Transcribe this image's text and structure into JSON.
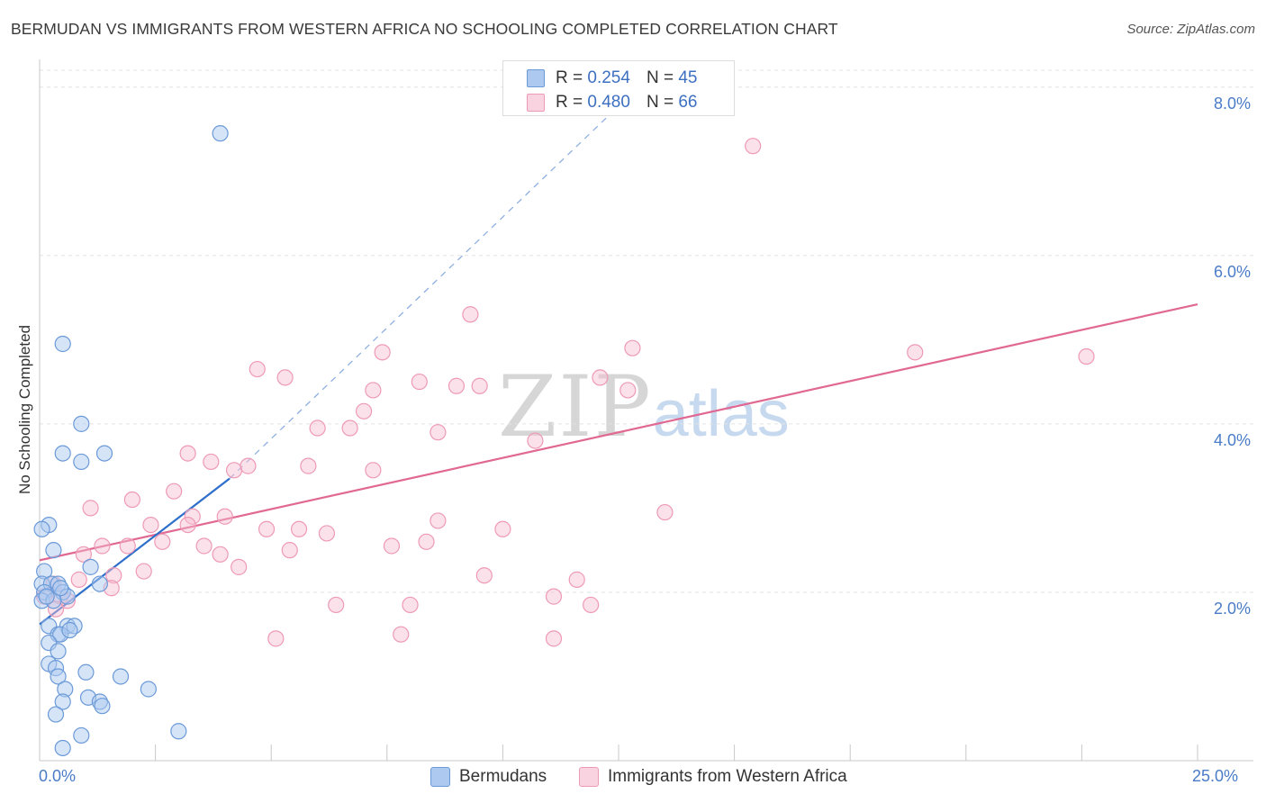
{
  "title": "BERMUDAN VS IMMIGRANTS FROM WESTERN AFRICA NO SCHOOLING COMPLETED CORRELATION CHART",
  "source": "Source: ZipAtlas.com",
  "watermark": {
    "zip": "ZIP",
    "atlas": "atlas"
  },
  "colors": {
    "bermudans_fill": "#adc9f0",
    "bermudans_stroke": "#6b9ad8",
    "bermudans_line": "#2f6fcc",
    "wafrica_fill": "#f6bcd0",
    "wafrica_stroke": "#ee9ab5",
    "wafrica_line": "#e06892",
    "tick_text": "#4a7cc7",
    "grid": "#e3e3e3"
  },
  "legend": {
    "rows": [
      {
        "r_label": "R = ",
        "r_value": "0.254",
        "n_label": "N = ",
        "n_value": "45"
      },
      {
        "r_label": "R = ",
        "r_value": "0.480",
        "n_label": "N = ",
        "n_value": "66"
      }
    ]
  },
  "bottom_legend": [
    "Bermudans",
    "Immigrants from Western Africa"
  ],
  "chart_data": {
    "type": "scatter",
    "title": "BERMUDAN VS IMMIGRANTS FROM WESTERN AFRICA NO SCHOOLING COMPLETED CORRELATION CHART",
    "xlabel": "",
    "ylabel": "No Schooling Completed",
    "xlim": [
      0,
      25
    ],
    "ylim": [
      0,
      8.2
    ],
    "x_tick_labels": [
      "0.0%",
      "25.0%"
    ],
    "y_ticks": [
      2,
      4,
      6,
      8
    ],
    "y_tick_labels": [
      "2.0%",
      "4.0%",
      "6.0%",
      "8.0%"
    ],
    "grid": true,
    "series": [
      {
        "name": "Bermudans",
        "R": 0.254,
        "N": 45,
        "points": [
          [
            3.9,
            7.45
          ],
          [
            0.5,
            4.95
          ],
          [
            0.9,
            4.0
          ],
          [
            0.5,
            3.65
          ],
          [
            1.4,
            3.65
          ],
          [
            0.9,
            3.55
          ],
          [
            0.2,
            2.8
          ],
          [
            0.05,
            2.75
          ],
          [
            0.3,
            2.5
          ],
          [
            1.1,
            2.3
          ],
          [
            0.1,
            2.25
          ],
          [
            0.05,
            2.1
          ],
          [
            0.25,
            2.1
          ],
          [
            0.4,
            2.1
          ],
          [
            1.3,
            2.1
          ],
          [
            0.1,
            2.0
          ],
          [
            0.5,
            2.0
          ],
          [
            0.6,
            1.95
          ],
          [
            0.05,
            1.9
          ],
          [
            0.3,
            1.9
          ],
          [
            0.2,
            1.6
          ],
          [
            0.6,
            1.6
          ],
          [
            0.75,
            1.6
          ],
          [
            0.4,
            1.5
          ],
          [
            0.45,
            1.5
          ],
          [
            0.65,
            1.55
          ],
          [
            0.2,
            1.4
          ],
          [
            0.4,
            1.3
          ],
          [
            0.2,
            1.15
          ],
          [
            0.35,
            1.1
          ],
          [
            1.0,
            1.05
          ],
          [
            0.4,
            1.0
          ],
          [
            1.75,
            1.0
          ],
          [
            0.55,
            0.85
          ],
          [
            2.35,
            0.85
          ],
          [
            0.5,
            0.7
          ],
          [
            1.05,
            0.75
          ],
          [
            1.3,
            0.7
          ],
          [
            1.35,
            0.65
          ],
          [
            0.35,
            0.55
          ],
          [
            0.9,
            0.3
          ],
          [
            3.0,
            0.35
          ],
          [
            0.5,
            0.15
          ],
          [
            0.15,
            1.95
          ],
          [
            0.45,
            2.05
          ]
        ],
        "trend": {
          "x0": 0.0,
          "y0": 1.62,
          "x1": 4.1,
          "y1": 3.35,
          "dash_x1": 13.5,
          "dash_y1": 8.3
        }
      },
      {
        "name": "Immigrants from Western Africa",
        "R": 0.48,
        "N": 66,
        "points": [
          [
            15.4,
            7.3
          ],
          [
            9.3,
            5.3
          ],
          [
            12.8,
            4.9
          ],
          [
            7.4,
            4.85
          ],
          [
            18.9,
            4.85
          ],
          [
            22.6,
            4.8
          ],
          [
            4.7,
            4.65
          ],
          [
            5.3,
            4.55
          ],
          [
            8.2,
            4.5
          ],
          [
            9.0,
            4.45
          ],
          [
            9.5,
            4.45
          ],
          [
            12.1,
            4.55
          ],
          [
            7.2,
            4.4
          ],
          [
            12.7,
            4.4
          ],
          [
            7.0,
            4.15
          ],
          [
            6.0,
            3.95
          ],
          [
            6.7,
            3.95
          ],
          [
            8.6,
            3.9
          ],
          [
            10.7,
            3.8
          ],
          [
            3.2,
            3.65
          ],
          [
            3.7,
            3.55
          ],
          [
            4.2,
            3.45
          ],
          [
            4.5,
            3.5
          ],
          [
            5.8,
            3.5
          ],
          [
            7.2,
            3.45
          ],
          [
            2.9,
            3.2
          ],
          [
            2.0,
            3.1
          ],
          [
            1.1,
            3.0
          ],
          [
            13.5,
            2.95
          ],
          [
            3.3,
            2.9
          ],
          [
            4.0,
            2.9
          ],
          [
            2.4,
            2.8
          ],
          [
            3.2,
            2.8
          ],
          [
            8.6,
            2.85
          ],
          [
            4.9,
            2.75
          ],
          [
            5.6,
            2.75
          ],
          [
            6.2,
            2.7
          ],
          [
            10.0,
            2.75
          ],
          [
            1.35,
            2.55
          ],
          [
            1.9,
            2.55
          ],
          [
            2.65,
            2.6
          ],
          [
            3.55,
            2.55
          ],
          [
            7.6,
            2.55
          ],
          [
            8.35,
            2.6
          ],
          [
            0.95,
            2.45
          ],
          [
            3.9,
            2.45
          ],
          [
            5.4,
            2.5
          ],
          [
            4.3,
            2.3
          ],
          [
            2.25,
            2.25
          ],
          [
            1.6,
            2.2
          ],
          [
            0.85,
            2.15
          ],
          [
            0.3,
            2.1
          ],
          [
            9.6,
            2.2
          ],
          [
            11.6,
            2.15
          ],
          [
            1.55,
            2.05
          ],
          [
            0.45,
            1.95
          ],
          [
            0.1,
            1.95
          ],
          [
            0.6,
            1.9
          ],
          [
            11.1,
            1.95
          ],
          [
            11.9,
            1.85
          ],
          [
            6.4,
            1.85
          ],
          [
            8.0,
            1.85
          ],
          [
            0.35,
            1.8
          ],
          [
            5.1,
            1.45
          ],
          [
            7.8,
            1.5
          ],
          [
            11.1,
            1.45
          ]
        ],
        "trend": {
          "x0": 0.0,
          "y0": 2.38,
          "x1": 25.0,
          "y1": 5.42
        }
      }
    ]
  }
}
